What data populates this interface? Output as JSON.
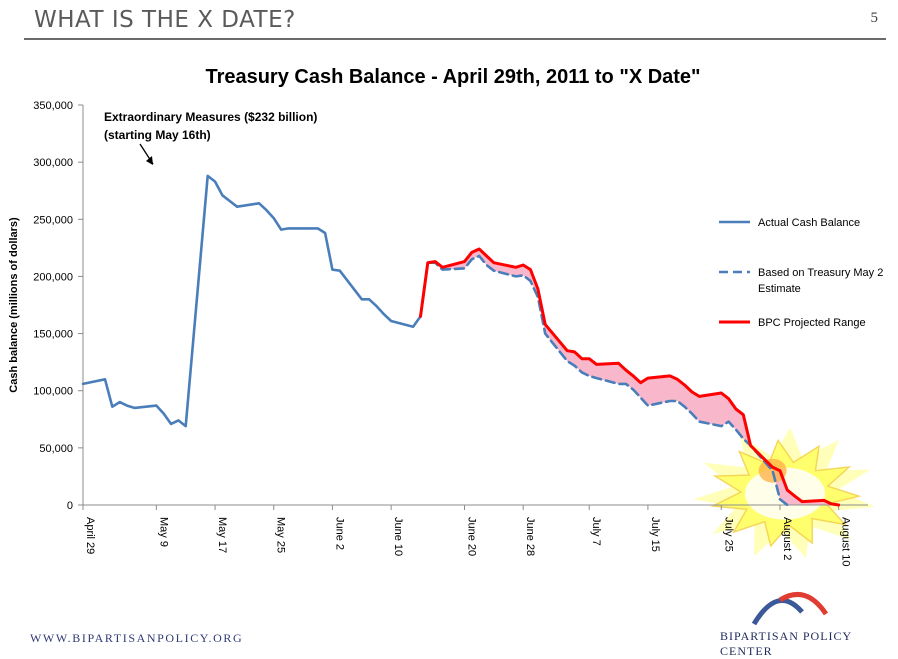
{
  "slide": {
    "header_title": "WHAT IS THE X DATE?",
    "page_number": "5",
    "footer_url": "WWW.BIPARTISANPOLICY.ORG",
    "footer_org": "BIPARTISAN POLICY CENTER"
  },
  "colors": {
    "actual": "#4a7ebb",
    "treasury": "#4a7ebb",
    "bpc": "#ff0000",
    "band": "#f9b3c8",
    "burst": "#ffff66",
    "header_rule": "#6b6b6b",
    "logo_blue": "#3b5998",
    "logo_red": "#e03c31"
  },
  "chart_data": {
    "type": "line",
    "title": "Treasury Cash Balance - April 29th, 2011 to \"X Date\"",
    "ylabel": "Cash balance  (millions of dollars)",
    "xlabel": "",
    "ylim": [
      0,
      350000
    ],
    "yticks": [
      0,
      50000,
      100000,
      150000,
      200000,
      250000,
      300000,
      350000
    ],
    "ytick_labels": [
      "0",
      "50,000",
      "100,000",
      "150,000",
      "200,000",
      "250,000",
      "300,000",
      "350,000"
    ],
    "x_start": "2011-04-29",
    "xlim": [
      "2011-04-29",
      "2011-08-14"
    ],
    "x_ticks": [
      {
        "date": "2011-04-29",
        "label": "April 29"
      },
      {
        "date": "2011-05-09",
        "label": "May 9"
      },
      {
        "date": "2011-05-17",
        "label": "May 17"
      },
      {
        "date": "2011-05-25",
        "label": "May 25"
      },
      {
        "date": "2011-06-02",
        "label": "June 2"
      },
      {
        "date": "2011-06-10",
        "label": "June 10"
      },
      {
        "date": "2011-06-20",
        "label": "June 20"
      },
      {
        "date": "2011-06-28",
        "label": "June 28"
      },
      {
        "date": "2011-07-07",
        "label": "July 7"
      },
      {
        "date": "2011-07-15",
        "label": "July 15"
      },
      {
        "date": "2011-07-25",
        "label": "July 25"
      },
      {
        "date": "2011-08-02",
        "label": "August 2"
      },
      {
        "date": "2011-08-10",
        "label": "August 10"
      }
    ],
    "annotation": {
      "lines": [
        "Extraordinary Measures  ($232 billion)",
        "(starting May 16th)"
      ]
    },
    "legend": {
      "position": "right",
      "entries": [
        {
          "label_lines": [
            "Actual Cash Balance"
          ],
          "style": "solid",
          "series": "actual"
        },
        {
          "label_lines": [
            "Based on Treasury May 2",
            "Estimate"
          ],
          "style": "dashed",
          "series": "treasury"
        },
        {
          "label_lines": [
            "BPC Projected Range"
          ],
          "style": "solid",
          "series": "bpc"
        }
      ]
    },
    "series": [
      {
        "name": "Actual Cash Balance",
        "key": "actual",
        "style": "solid",
        "points": [
          [
            "2011-04-29",
            106000
          ],
          [
            "2011-05-02",
            110000
          ],
          [
            "2011-05-03",
            86000
          ],
          [
            "2011-05-04",
            90000
          ],
          [
            "2011-05-05",
            87000
          ],
          [
            "2011-05-06",
            85000
          ],
          [
            "2011-05-09",
            87000
          ],
          [
            "2011-05-10",
            80000
          ],
          [
            "2011-05-11",
            71000
          ],
          [
            "2011-05-12",
            74000
          ],
          [
            "2011-05-13",
            69000
          ],
          [
            "2011-05-16",
            288000
          ],
          [
            "2011-05-17",
            283000
          ],
          [
            "2011-05-18",
            271000
          ],
          [
            "2011-05-19",
            266000
          ],
          [
            "2011-05-20",
            261000
          ],
          [
            "2011-05-23",
            264000
          ],
          [
            "2011-05-24",
            258000
          ],
          [
            "2011-05-25",
            251000
          ],
          [
            "2011-05-26",
            241000
          ],
          [
            "2011-05-27",
            242000
          ],
          [
            "2011-05-31",
            242000
          ],
          [
            "2011-06-01",
            238000
          ],
          [
            "2011-06-02",
            206000
          ],
          [
            "2011-06-03",
            205000
          ],
          [
            "2011-06-06",
            180000
          ],
          [
            "2011-06-07",
            180000
          ],
          [
            "2011-06-08",
            174000
          ],
          [
            "2011-06-09",
            167000
          ],
          [
            "2011-06-10",
            161000
          ],
          [
            "2011-06-13",
            156000
          ],
          [
            "2011-06-14",
            165000
          ]
        ]
      },
      {
        "name": "Based on Treasury May 2 Estimate",
        "key": "treasury",
        "style": "dashed",
        "points": [
          [
            "2011-06-14",
            165000
          ],
          [
            "2011-06-15",
            212000
          ],
          [
            "2011-06-16",
            212000
          ],
          [
            "2011-06-17",
            206000
          ],
          [
            "2011-06-20",
            207000
          ],
          [
            "2011-06-21",
            215000
          ],
          [
            "2011-06-22",
            218000
          ],
          [
            "2011-06-23",
            210000
          ],
          [
            "2011-06-24",
            205000
          ],
          [
            "2011-06-27",
            200000
          ],
          [
            "2011-06-28",
            201000
          ],
          [
            "2011-06-29",
            196000
          ],
          [
            "2011-06-30",
            182000
          ],
          [
            "2011-07-01",
            150000
          ],
          [
            "2011-07-04",
            126000
          ],
          [
            "2011-07-05",
            122000
          ],
          [
            "2011-07-06",
            116000
          ],
          [
            "2011-07-07",
            113000
          ],
          [
            "2011-07-08",
            111000
          ],
          [
            "2011-07-11",
            106000
          ],
          [
            "2011-07-12",
            106000
          ],
          [
            "2011-07-13",
            101000
          ],
          [
            "2011-07-14",
            94000
          ],
          [
            "2011-07-15",
            87000
          ],
          [
            "2011-07-18",
            91000
          ],
          [
            "2011-07-19",
            91000
          ],
          [
            "2011-07-20",
            86000
          ],
          [
            "2011-07-21",
            80000
          ],
          [
            "2011-07-22",
            73000
          ],
          [
            "2011-07-25",
            69000
          ],
          [
            "2011-07-26",
            73000
          ],
          [
            "2011-07-27",
            66000
          ],
          [
            "2011-07-28",
            58000
          ],
          [
            "2011-07-29",
            52000
          ],
          [
            "2011-08-01",
            30000
          ],
          [
            "2011-08-02",
            5000
          ],
          [
            "2011-08-03",
            0
          ]
        ]
      },
      {
        "name": "BPC Projected Range",
        "key": "bpc",
        "style": "solid",
        "points": [
          [
            "2011-06-14",
            165000
          ],
          [
            "2011-06-15",
            212000
          ],
          [
            "2011-06-16",
            213000
          ],
          [
            "2011-06-17",
            208000
          ],
          [
            "2011-06-20",
            213000
          ],
          [
            "2011-06-21",
            221000
          ],
          [
            "2011-06-22",
            224000
          ],
          [
            "2011-06-23",
            218000
          ],
          [
            "2011-06-24",
            212000
          ],
          [
            "2011-06-27",
            208000
          ],
          [
            "2011-06-28",
            210000
          ],
          [
            "2011-06-29",
            206000
          ],
          [
            "2011-06-30",
            189000
          ],
          [
            "2011-07-01",
            158000
          ],
          [
            "2011-07-04",
            135000
          ],
          [
            "2011-07-05",
            134000
          ],
          [
            "2011-07-06",
            128000
          ],
          [
            "2011-07-07",
            128000
          ],
          [
            "2011-07-08",
            123000
          ],
          [
            "2011-07-11",
            124000
          ],
          [
            "2011-07-12",
            118000
          ],
          [
            "2011-07-13",
            113000
          ],
          [
            "2011-07-14",
            107000
          ],
          [
            "2011-07-15",
            111000
          ],
          [
            "2011-07-18",
            113000
          ],
          [
            "2011-07-19",
            110000
          ],
          [
            "2011-07-20",
            105000
          ],
          [
            "2011-07-21",
            99000
          ],
          [
            "2011-07-22",
            95000
          ],
          [
            "2011-07-25",
            98000
          ],
          [
            "2011-07-26",
            93000
          ],
          [
            "2011-07-27",
            84000
          ],
          [
            "2011-07-28",
            79000
          ],
          [
            "2011-07-29",
            52000
          ],
          [
            "2011-08-01",
            33000
          ],
          [
            "2011-08-02",
            30000
          ],
          [
            "2011-08-03",
            13000
          ],
          [
            "2011-08-04",
            8000
          ],
          [
            "2011-08-05",
            3000
          ],
          [
            "2011-08-08",
            4000
          ],
          [
            "2011-08-09",
            1000
          ],
          [
            "2011-08-10",
            0
          ]
        ]
      }
    ]
  }
}
